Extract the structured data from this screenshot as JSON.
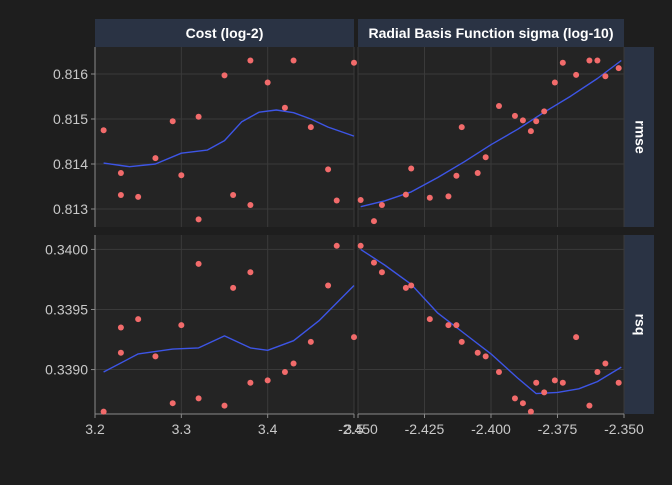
{
  "colors": {
    "background": "#1e1e1e",
    "panel": "#242424",
    "strip": "#2a3344",
    "grid": "#3a3a3a",
    "point": "#f26b6b",
    "smooth": "#3d55e6",
    "text": "#c9c9c9",
    "strip_text": "#ffffff"
  },
  "chart_data": {
    "type": "scatter",
    "smooth": "loess",
    "grid": true,
    "legend": "none",
    "facets": {
      "columns": [
        "Cost (log-2)",
        "Radial Basis Function sigma (log-10)"
      ],
      "rows": [
        "rmse",
        "rsq"
      ]
    },
    "x_axes": [
      {
        "xlim": [
          3.2,
          3.5
        ],
        "ticks": [
          "3.2",
          "3.3",
          "3.4",
          "3.5"
        ],
        "tick_values": [
          3.2,
          3.3,
          3.4,
          3.5
        ]
      },
      {
        "xlim": [
          -2.45,
          -2.35
        ],
        "ticks": [
          "-2.450",
          "-2.425",
          "-2.400",
          "-2.375",
          "-2.350"
        ],
        "tick_values": [
          -2.45,
          -2.425,
          -2.4,
          -2.375,
          -2.35
        ]
      }
    ],
    "y_axes": [
      {
        "ylim": [
          0.8126,
          0.8166
        ],
        "ticks": [
          "0.813",
          "0.814",
          "0.815",
          "0.816"
        ],
        "tick_values": [
          0.813,
          0.814,
          0.815,
          0.816
        ]
      },
      {
        "ylim": [
          0.33863,
          0.34012
        ],
        "ticks": [
          "0.3390",
          "0.3395",
          "0.3400"
        ],
        "tick_values": [
          0.339,
          0.3395,
          0.34
        ]
      }
    ],
    "panels": [
      {
        "column": "Cost (log-2)",
        "row": "rmse",
        "x": [
          3.21,
          3.23,
          3.23,
          3.25,
          3.27,
          3.29,
          3.3,
          3.32,
          3.32,
          3.35,
          3.36,
          3.38,
          3.38,
          3.4,
          3.42,
          3.43,
          3.45,
          3.47,
          3.48,
          3.5
        ],
        "y": [
          0.81475,
          0.8138,
          0.81331,
          0.81327,
          0.81413,
          0.81495,
          0.81375,
          0.81505,
          0.81277,
          0.81597,
          0.81331,
          0.81309,
          0.8163,
          0.81581,
          0.81525,
          0.8163,
          0.81482,
          0.81388,
          0.81319,
          0.81625
        ],
        "smooth_x": [
          3.21,
          3.24,
          3.27,
          3.3,
          3.33,
          3.35,
          3.37,
          3.39,
          3.41,
          3.43,
          3.45,
          3.47,
          3.5
        ],
        "smooth_y": [
          0.81402,
          0.81394,
          0.814,
          0.81424,
          0.81431,
          0.81452,
          0.81494,
          0.81515,
          0.8152,
          0.81514,
          0.815,
          0.81482,
          0.81462
        ]
      },
      {
        "column": "Radial Basis Function sigma (log-10)",
        "row": "rmse",
        "x": [
          -2.449,
          -2.444,
          -2.441,
          -2.432,
          -2.43,
          -2.423,
          -2.416,
          -2.413,
          -2.411,
          -2.405,
          -2.402,
          -2.397,
          -2.391,
          -2.388,
          -2.385,
          -2.383,
          -2.38,
          -2.376,
          -2.373,
          -2.368,
          -2.363,
          -2.36,
          -2.357,
          -2.352
        ],
        "y": [
          0.8132,
          0.81273,
          0.81309,
          0.81332,
          0.8139,
          0.81325,
          0.81328,
          0.81374,
          0.81482,
          0.8138,
          0.81415,
          0.81529,
          0.81507,
          0.81497,
          0.81473,
          0.81495,
          0.81517,
          0.81581,
          0.81625,
          0.81598,
          0.8163,
          0.8163,
          0.81595,
          0.81613
        ],
        "smooth_x": [
          -2.449,
          -2.44,
          -2.43,
          -2.42,
          -2.41,
          -2.4,
          -2.39,
          -2.38,
          -2.37,
          -2.36,
          -2.351
        ],
        "smooth_y": [
          0.81305,
          0.81318,
          0.81338,
          0.8137,
          0.81405,
          0.81443,
          0.81477,
          0.81515,
          0.81551,
          0.8159,
          0.8163
        ]
      },
      {
        "column": "Cost (log-2)",
        "row": "rsq",
        "x": [
          3.21,
          3.23,
          3.23,
          3.25,
          3.27,
          3.29,
          3.3,
          3.32,
          3.32,
          3.35,
          3.36,
          3.38,
          3.38,
          3.4,
          3.42,
          3.43,
          3.45,
          3.47,
          3.48,
          3.5
        ],
        "y": [
          0.33865,
          0.33935,
          0.33914,
          0.33942,
          0.33911,
          0.33872,
          0.33937,
          0.33876,
          0.33988,
          0.3387,
          0.33968,
          0.33981,
          0.33889,
          0.33891,
          0.33898,
          0.33905,
          0.33923,
          0.3397,
          0.34003,
          0.33927
        ],
        "smooth_x": [
          3.21,
          3.25,
          3.29,
          3.32,
          3.35,
          3.38,
          3.4,
          3.43,
          3.46,
          3.5
        ],
        "smooth_y": [
          0.33898,
          0.33913,
          0.33917,
          0.33918,
          0.33928,
          0.33918,
          0.33916,
          0.33924,
          0.33941,
          0.3397
        ]
      },
      {
        "column": "Radial Basis Function sigma (log-10)",
        "row": "rsq",
        "x": [
          -2.449,
          -2.444,
          -2.441,
          -2.432,
          -2.43,
          -2.423,
          -2.416,
          -2.413,
          -2.411,
          -2.405,
          -2.402,
          -2.397,
          -2.391,
          -2.388,
          -2.385,
          -2.383,
          -2.38,
          -2.376,
          -2.373,
          -2.368,
          -2.363,
          -2.36,
          -2.357,
          -2.352
        ],
        "y": [
          0.34003,
          0.33989,
          0.33981,
          0.33968,
          0.3397,
          0.33942,
          0.33937,
          0.33937,
          0.33923,
          0.33914,
          0.33911,
          0.33898,
          0.33876,
          0.33872,
          0.33865,
          0.33889,
          0.33881,
          0.33891,
          0.33889,
          0.33927,
          0.3387,
          0.33898,
          0.33905,
          0.33889
        ],
        "smooth_x": [
          -2.449,
          -2.44,
          -2.43,
          -2.42,
          -2.41,
          -2.4,
          -2.39,
          -2.383,
          -2.375,
          -2.367,
          -2.36,
          -2.351
        ],
        "smooth_y": [
          0.34,
          0.33987,
          0.33971,
          0.33947,
          0.3393,
          0.33913,
          0.33893,
          0.3388,
          0.33881,
          0.33884,
          0.3389,
          0.33902
        ]
      }
    ]
  }
}
